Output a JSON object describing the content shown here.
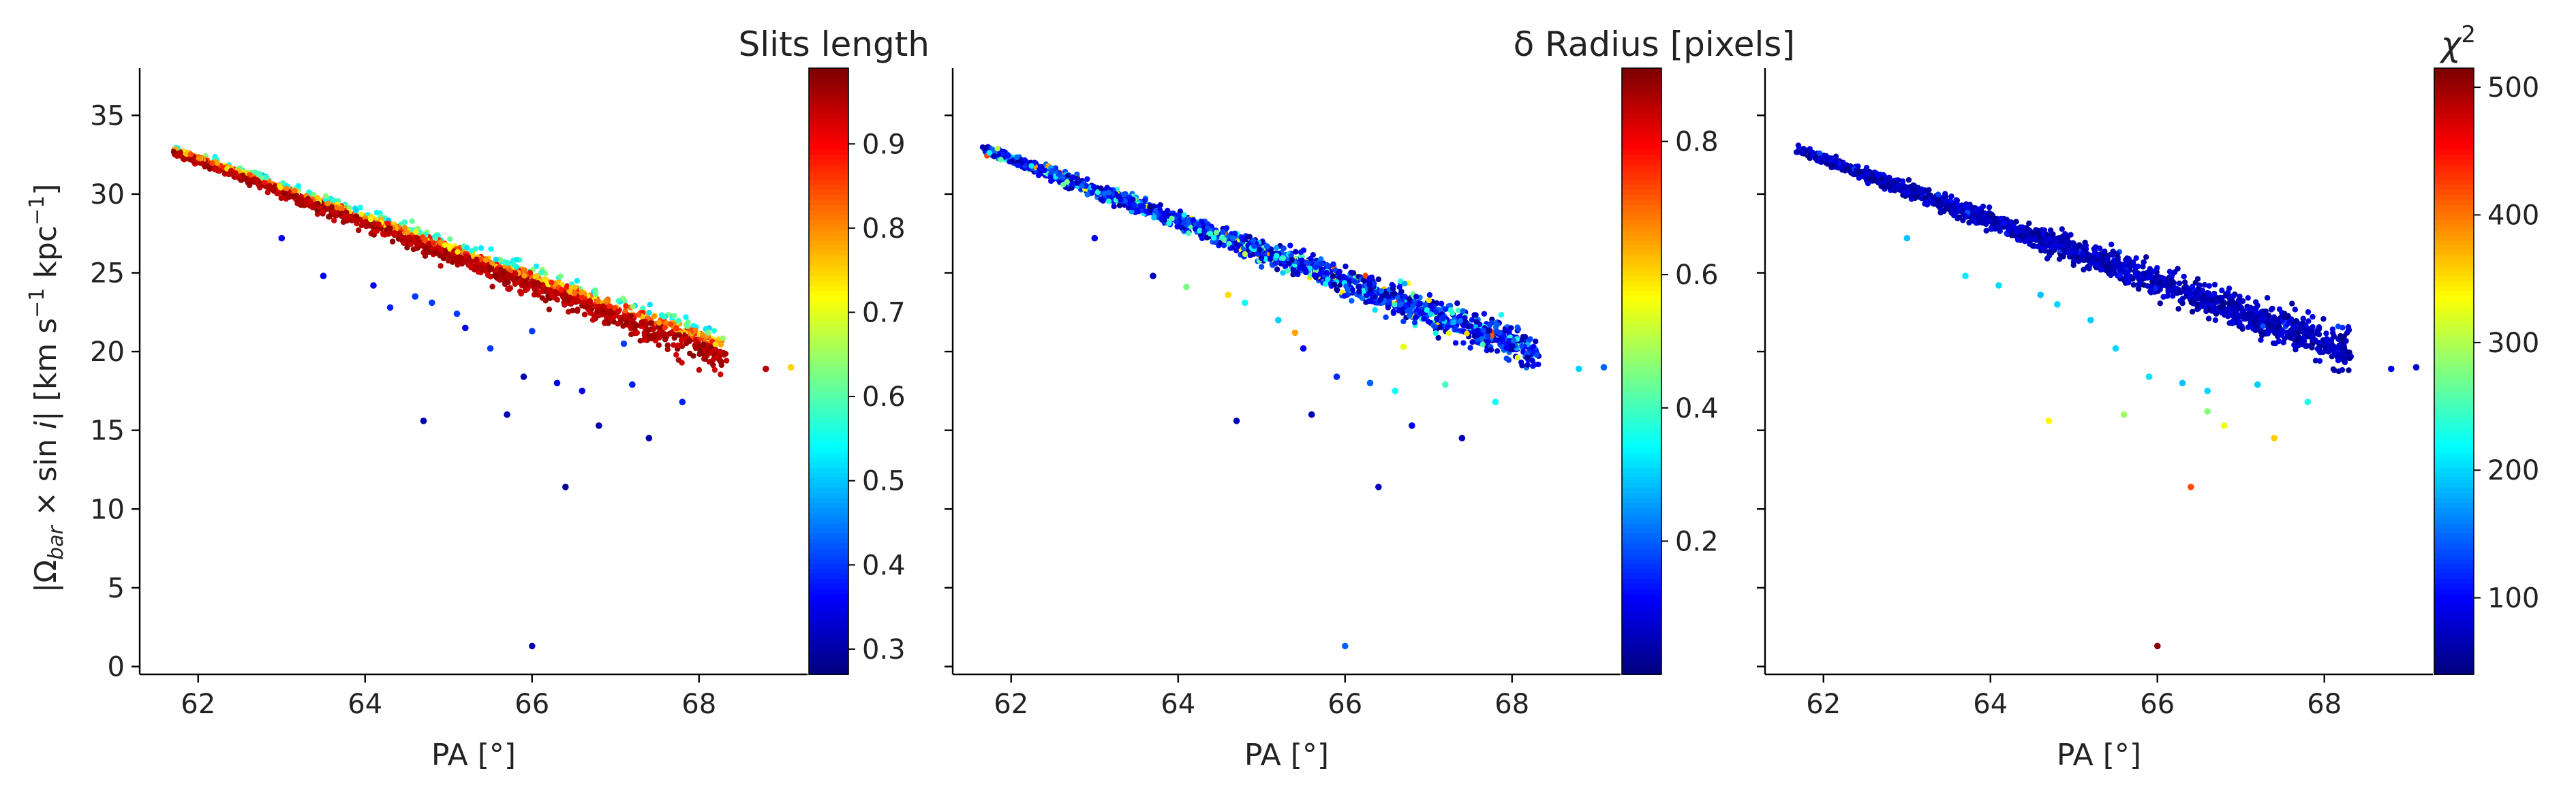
{
  "figure": {
    "shared_ylabel": "|Ω_bar × sin i|  [km s⁻¹ kpc⁻¹]",
    "shared_ylabel_parts": {
      "open": "|Ω",
      "sub": "bar",
      "times": " × sin ",
      "i": "i",
      "close": "|   [km s",
      "exp1": "−1",
      "kpc": " kpc",
      "exp2": "−1",
      "bracket": "]"
    }
  },
  "chart_data": [
    {
      "type": "scatter",
      "title": "",
      "xlabel": "PA [°]",
      "ylabel": "|Ω_bar × sin i|  [km s⁻¹ kpc⁻¹]",
      "xlim": [
        61.3,
        69.3
      ],
      "ylim": [
        -0.5,
        38.0
      ],
      "xticks": [
        62,
        64,
        66,
        68
      ],
      "yticks": [
        0,
        5,
        10,
        15,
        20,
        25,
        30,
        35
      ],
      "grid": false,
      "colormap": "jet",
      "colorbar": {
        "label": "Slits length",
        "range": [
          0.27,
          0.99
        ],
        "ticks": [
          0.3,
          0.4,
          0.5,
          0.6,
          0.7,
          0.8,
          0.9
        ]
      },
      "color_rule": "band",
      "points_main": "dense band from (61.7, 32.8) to (68.3, 20.0); ~2000 points",
      "outliers": [
        {
          "x": 63.0,
          "y": 27.2,
          "c": 0.35
        },
        {
          "x": 63.5,
          "y": 24.8,
          "c": 0.35
        },
        {
          "x": 64.1,
          "y": 24.2,
          "c": 0.35
        },
        {
          "x": 64.3,
          "y": 22.8,
          "c": 0.38
        },
        {
          "x": 64.6,
          "y": 23.5,
          "c": 0.4
        },
        {
          "x": 64.8,
          "y": 23.1,
          "c": 0.4
        },
        {
          "x": 65.2,
          "y": 21.5,
          "c": 0.35
        },
        {
          "x": 65.5,
          "y": 20.2,
          "c": 0.4
        },
        {
          "x": 65.9,
          "y": 18.4,
          "c": 0.3
        },
        {
          "x": 66.3,
          "y": 18.0,
          "c": 0.35
        },
        {
          "x": 66.6,
          "y": 17.5,
          "c": 0.35
        },
        {
          "x": 67.2,
          "y": 17.9,
          "c": 0.38
        },
        {
          "x": 67.8,
          "y": 16.8,
          "c": 0.38
        },
        {
          "x": 64.7,
          "y": 15.6,
          "c": 0.3
        },
        {
          "x": 65.7,
          "y": 16.0,
          "c": 0.3
        },
        {
          "x": 66.8,
          "y": 15.3,
          "c": 0.3
        },
        {
          "x": 67.4,
          "y": 14.5,
          "c": 0.3
        },
        {
          "x": 66.4,
          "y": 11.4,
          "c": 0.28
        },
        {
          "x": 66.0,
          "y": 1.3,
          "c": 0.3
        },
        {
          "x": 68.8,
          "y": 18.9,
          "c": 0.95
        },
        {
          "x": 69.1,
          "y": 19.0,
          "c": 0.75
        },
        {
          "x": 67.1,
          "y": 20.5,
          "c": 0.4
        },
        {
          "x": 66.0,
          "y": 21.3,
          "c": 0.4
        },
        {
          "x": 65.1,
          "y": 22.4,
          "c": 0.4
        }
      ]
    },
    {
      "type": "scatter",
      "title": "",
      "xlabel": "PA [°]",
      "xlim": [
        61.3,
        69.3
      ],
      "ylim": [
        -0.5,
        38.0
      ],
      "xticks": [
        62,
        64,
        66,
        68
      ],
      "yticks": [
        0,
        5,
        10,
        15,
        20,
        25,
        30,
        35
      ],
      "grid": false,
      "colormap": "jet",
      "colorbar": {
        "label": "δ Radius [pixels]",
        "range": [
          0.0,
          0.91
        ],
        "ticks": [
          0.2,
          0.4,
          0.6,
          0.8
        ]
      },
      "color_rule": "mostly-low",
      "points_main": "dense band from (61.7, 32.8) to (68.3, 20.0); ~2000 points",
      "outliers": [
        {
          "x": 63.0,
          "y": 27.2,
          "c": 0.1
        },
        {
          "x": 63.7,
          "y": 24.8,
          "c": 0.05
        },
        {
          "x": 64.1,
          "y": 24.1,
          "c": 0.45
        },
        {
          "x": 64.6,
          "y": 23.6,
          "c": 0.6
        },
        {
          "x": 64.8,
          "y": 23.1,
          "c": 0.35
        },
        {
          "x": 65.2,
          "y": 22.0,
          "c": 0.3
        },
        {
          "x": 65.5,
          "y": 20.2,
          "c": 0.1
        },
        {
          "x": 65.9,
          "y": 18.4,
          "c": 0.15
        },
        {
          "x": 66.3,
          "y": 18.0,
          "c": 0.2
        },
        {
          "x": 66.6,
          "y": 17.5,
          "c": 0.35
        },
        {
          "x": 67.2,
          "y": 17.9,
          "c": 0.4
        },
        {
          "x": 67.8,
          "y": 16.8,
          "c": 0.35
        },
        {
          "x": 64.7,
          "y": 15.6,
          "c": 0.05
        },
        {
          "x": 65.6,
          "y": 16.0,
          "c": 0.05
        },
        {
          "x": 66.8,
          "y": 15.3,
          "c": 0.1
        },
        {
          "x": 67.4,
          "y": 14.5,
          "c": 0.05
        },
        {
          "x": 66.4,
          "y": 11.4,
          "c": 0.05
        },
        {
          "x": 66.0,
          "y": 1.3,
          "c": 0.2
        },
        {
          "x": 68.8,
          "y": 18.9,
          "c": 0.3
        },
        {
          "x": 69.1,
          "y": 19.0,
          "c": 0.2
        },
        {
          "x": 66.7,
          "y": 20.3,
          "c": 0.55
        },
        {
          "x": 65.4,
          "y": 21.2,
          "c": 0.65
        }
      ]
    },
    {
      "type": "scatter",
      "title": "",
      "xlabel": "PA [°]",
      "xlim": [
        61.3,
        69.3
      ],
      "ylim": [
        -0.5,
        38.0
      ],
      "xticks": [
        62,
        64,
        66,
        68
      ],
      "yticks": [
        0,
        5,
        10,
        15,
        20,
        25,
        30,
        35
      ],
      "grid": false,
      "colormap": "jet",
      "colorbar": {
        "label": "χ²",
        "label_base": "χ",
        "label_sup": "2",
        "range": [
          40,
          515
        ],
        "ticks": [
          100,
          200,
          300,
          400,
          500
        ]
      },
      "color_rule": "dark",
      "points_main": "dense band from (61.7, 32.8) to (68.3, 20.0); ~2000 points",
      "outliers": [
        {
          "x": 63.0,
          "y": 27.2,
          "c": 190
        },
        {
          "x": 63.7,
          "y": 24.8,
          "c": 210
        },
        {
          "x": 64.1,
          "y": 24.2,
          "c": 200
        },
        {
          "x": 64.6,
          "y": 23.6,
          "c": 190
        },
        {
          "x": 64.8,
          "y": 23.0,
          "c": 200
        },
        {
          "x": 65.2,
          "y": 22.0,
          "c": 195
        },
        {
          "x": 65.5,
          "y": 20.2,
          "c": 200
        },
        {
          "x": 65.9,
          "y": 18.4,
          "c": 205
        },
        {
          "x": 66.3,
          "y": 18.0,
          "c": 190
        },
        {
          "x": 66.6,
          "y": 17.5,
          "c": 200
        },
        {
          "x": 67.2,
          "y": 17.9,
          "c": 195
        },
        {
          "x": 67.8,
          "y": 16.8,
          "c": 230
        },
        {
          "x": 64.7,
          "y": 15.6,
          "c": 340
        },
        {
          "x": 65.6,
          "y": 16.0,
          "c": 290
        },
        {
          "x": 66.8,
          "y": 15.3,
          "c": 330
        },
        {
          "x": 66.6,
          "y": 16.2,
          "c": 280
        },
        {
          "x": 67.4,
          "y": 14.5,
          "c": 360
        },
        {
          "x": 66.4,
          "y": 11.4,
          "c": 420
        },
        {
          "x": 66.0,
          "y": 1.3,
          "c": 510
        },
        {
          "x": 68.8,
          "y": 18.9,
          "c": 90
        },
        {
          "x": 69.1,
          "y": 19.0,
          "c": 80
        }
      ]
    }
  ]
}
